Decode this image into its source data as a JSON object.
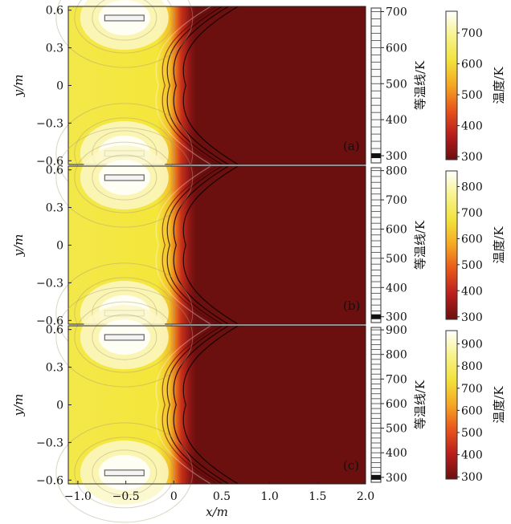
{
  "chart_data": {
    "type": "heatmap",
    "shared": {
      "xlabel": "x/m",
      "ylabel": "y/m",
      "xlim": [
        -1.1,
        2.0
      ],
      "ylim": [
        -0.63,
        0.63
      ],
      "x_ticks": [
        "−1.0",
        "−0.5",
        "0",
        "0.5",
        "1.0",
        "1.5",
        "2.0"
      ],
      "x_tick_values": [
        -1.0,
        -0.5,
        0,
        0.5,
        1.0,
        1.5,
        2.0
      ],
      "y_ticks": [
        "0.6",
        "0.3",
        "0",
        "−0.3",
        "−0.6"
      ],
      "y_tick_values": [
        0.6,
        0.3,
        0,
        -0.3,
        -0.6
      ],
      "contour_colorbar_label": "等温线/K",
      "color_colorbar_label": "温度/K",
      "colormap": [
        "#6b0f0f",
        "#b81d1d",
        "#e8541a",
        "#f5a623",
        "#f2e23c",
        "#f7f38a",
        "#ffffff"
      ],
      "heat_sources": [
        {
          "x": [
            -0.72,
            -0.31
          ],
          "y": [
            0.52,
            0.56
          ]
        },
        {
          "x": [
            -0.72,
            -0.31
          ],
          "y": [
            -0.56,
            -0.52
          ]
        }
      ]
    },
    "panels": [
      {
        "label": "(a)",
        "contour_ticks": [
          "300",
          "400",
          "500",
          "600",
          "700"
        ],
        "contour_range": [
          280,
          710
        ],
        "color_ticks": [
          "300",
          "400",
          "500",
          "600",
          "700"
        ],
        "color_range": [
          290,
          770
        ],
        "front_x": 0.0
      },
      {
        "label": "(b)",
        "contour_ticks": [
          "300",
          "400",
          "500",
          "600",
          "700",
          "800"
        ],
        "contour_range": [
          280,
          810
        ],
        "color_ticks": [
          "300",
          "400",
          "500",
          "600",
          "700",
          "800"
        ],
        "color_range": [
          290,
          860
        ],
        "front_x": 0.0
      },
      {
        "label": "(c)",
        "contour_ticks": [
          "300",
          "400",
          "500",
          "600",
          "700",
          "800",
          "900"
        ],
        "contour_range": [
          280,
          910
        ],
        "color_ticks": [
          "300",
          "400",
          "500",
          "600",
          "700",
          "800",
          "900"
        ],
        "color_range": [
          290,
          960
        ],
        "front_x": 0.0
      }
    ]
  }
}
